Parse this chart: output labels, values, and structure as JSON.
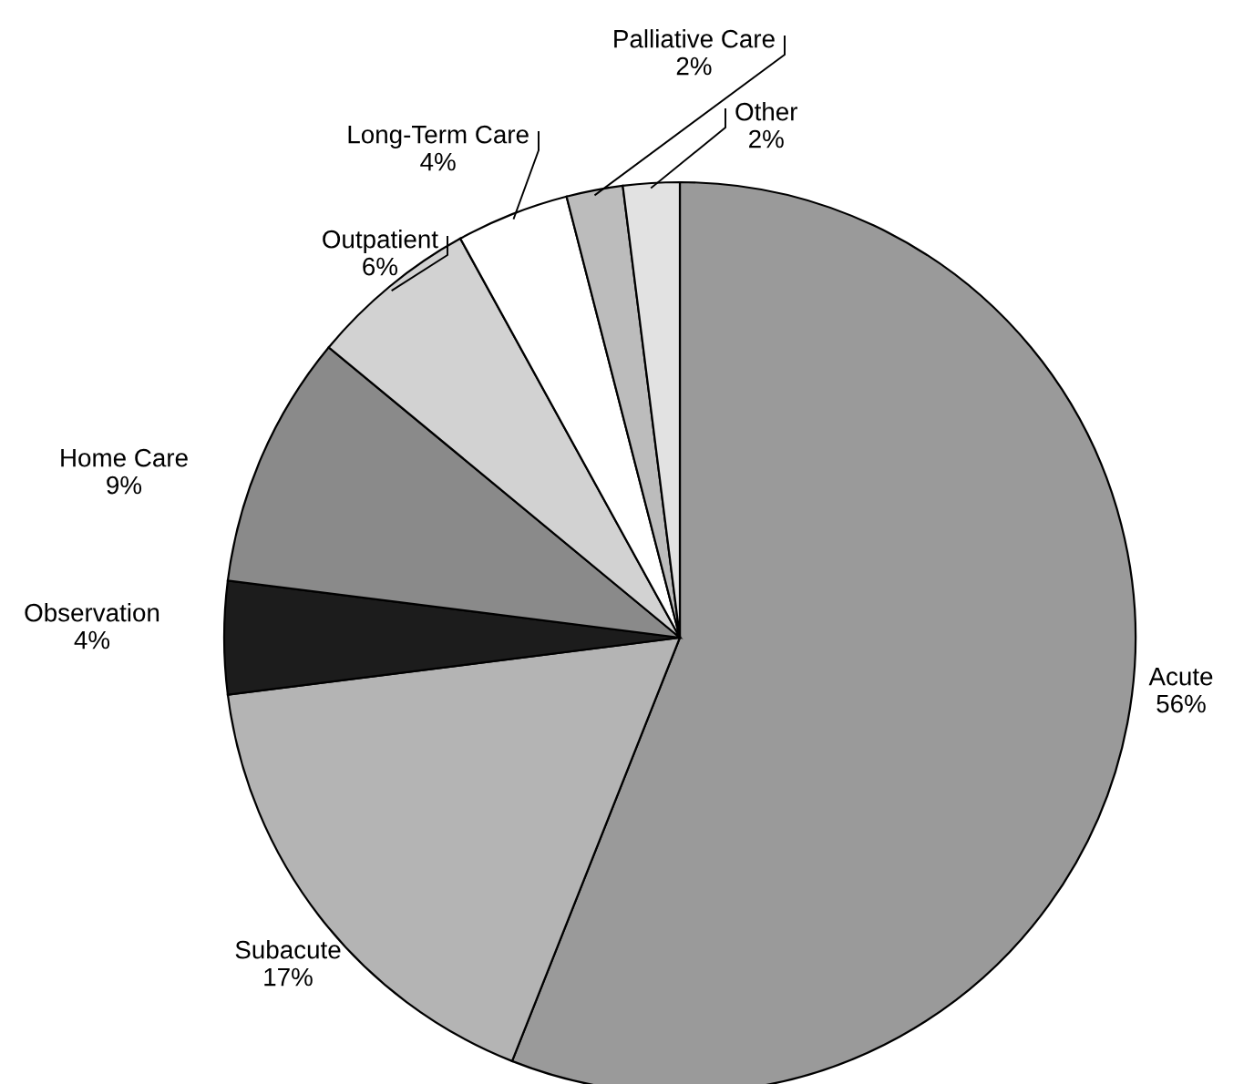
{
  "chart_data": {
    "type": "pie",
    "categories": [
      "Acute",
      "Subacute",
      "Observation",
      "Home Care",
      "Outpatient",
      "Long-Term Care",
      "Palliative Care",
      "Other"
    ],
    "values": [
      56,
      17,
      4,
      9,
      6,
      4,
      2,
      2
    ],
    "colors": [
      "#9a9a9a",
      "#b4b4b4",
      "#1c1c1c",
      "#8a8a8a",
      "#d2d2d2",
      "#ffffff",
      "#bcbcbc",
      "#e2e2e2"
    ],
    "value_labels": [
      "56%",
      "17%",
      "4%",
      "9%",
      "6%",
      "4%",
      "2%",
      "2%"
    ],
    "legend": false
  }
}
